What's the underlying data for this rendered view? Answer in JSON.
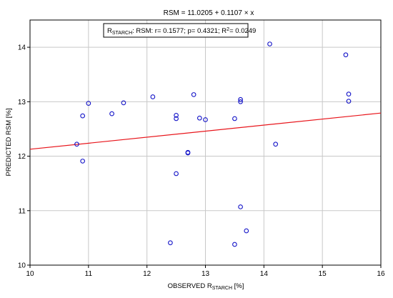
{
  "chart_data": {
    "type": "scatter",
    "title": "RSM = 11.0205 + 0.1107 × x",
    "xlabel_main": "OBSERVED R",
    "xlabel_sub": "STARCH",
    "xlabel_unit": " [%]",
    "ylabel": "PREDICTED RSM [%]",
    "xlim": [
      10,
      16
    ],
    "ylim": [
      10,
      14.5
    ],
    "x_ticks": [
      10,
      11,
      12,
      13,
      14,
      15,
      16
    ],
    "y_ticks": [
      10,
      11,
      12,
      13,
      14
    ],
    "grid": true,
    "legend": {
      "r_main": "R",
      "r_sub": "STARCH",
      "stats_a": ": RSM: r= 0.1577; p= 0.4321; R",
      "stats_sup": "2",
      "stats_b": "= 0.0249",
      "placement": "top-center"
    },
    "regression": {
      "intercept": 11.0205,
      "slope": 0.1107,
      "color": "#e8151b"
    },
    "marker_color": "#1414c8",
    "points": [
      {
        "x": 10.8,
        "y": 12.22
      },
      {
        "x": 10.9,
        "y": 12.74
      },
      {
        "x": 10.9,
        "y": 11.91
      },
      {
        "x": 11.0,
        "y": 12.97
      },
      {
        "x": 11.4,
        "y": 12.78
      },
      {
        "x": 11.6,
        "y": 12.98
      },
      {
        "x": 12.1,
        "y": 13.09
      },
      {
        "x": 12.4,
        "y": 10.41
      },
      {
        "x": 12.5,
        "y": 12.75
      },
      {
        "x": 12.5,
        "y": 12.69
      },
      {
        "x": 12.5,
        "y": 11.68
      },
      {
        "x": 12.7,
        "y": 12.06
      },
      {
        "x": 12.7,
        "y": 12.07
      },
      {
        "x": 12.8,
        "y": 13.13
      },
      {
        "x": 12.9,
        "y": 12.7
      },
      {
        "x": 13.0,
        "y": 12.67
      },
      {
        "x": 13.5,
        "y": 12.69
      },
      {
        "x": 13.5,
        "y": 10.38
      },
      {
        "x": 13.6,
        "y": 13.04
      },
      {
        "x": 13.6,
        "y": 13.0
      },
      {
        "x": 13.6,
        "y": 11.07
      },
      {
        "x": 13.7,
        "y": 10.63
      },
      {
        "x": 14.1,
        "y": 14.06
      },
      {
        "x": 14.2,
        "y": 12.22
      },
      {
        "x": 15.4,
        "y": 13.86
      },
      {
        "x": 15.45,
        "y": 13.14
      },
      {
        "x": 15.45,
        "y": 13.01
      }
    ]
  }
}
